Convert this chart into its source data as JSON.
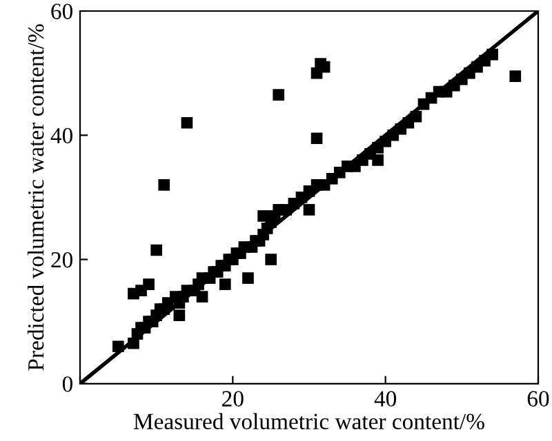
{
  "chart_data": {
    "type": "scatter",
    "xlabel": "Measured volumetric water content/%",
    "ylabel": "Predicted volumetric water content/%",
    "xlim": [
      0,
      60
    ],
    "ylim": [
      0,
      60
    ],
    "xticks": [
      {
        "value": 0,
        "label": null
      },
      20,
      40,
      60
    ],
    "yticks": [
      0,
      20,
      40,
      60
    ],
    "grid": false,
    "legend": false,
    "marker": "square",
    "series": [
      {
        "color": "#000000",
        "x": [
          5,
          7,
          7.5,
          8,
          8.5,
          9,
          9.5,
          10,
          10.5,
          11,
          11.5,
          12.5,
          13,
          13.5,
          14,
          15,
          15.5,
          16,
          17,
          17.5,
          18,
          18.5,
          19,
          19.5,
          20,
          20.5,
          21,
          21.5,
          22.5,
          23,
          23.5,
          24,
          24.5,
          25,
          25.5,
          26,
          27,
          28,
          29,
          30,
          31,
          32,
          33,
          34,
          35,
          36,
          37,
          38,
          39,
          40,
          41,
          42,
          43,
          44,
          45,
          46,
          47,
          48,
          49,
          50,
          51,
          52,
          53,
          54,
          7,
          8,
          9,
          10,
          11,
          14,
          26,
          31,
          31,
          31.5,
          32,
          57,
          13,
          16,
          19,
          22,
          25,
          24,
          30,
          39
        ],
        "values": [
          6,
          6.5,
          8,
          9,
          9,
          10,
          10,
          11,
          12,
          12,
          13,
          14,
          13,
          14,
          15,
          15,
          16,
          17,
          17,
          18,
          18,
          19,
          19,
          20,
          20,
          21,
          21,
          22,
          22,
          23,
          23,
          24,
          25,
          26,
          27,
          28,
          28,
          29,
          30,
          31,
          32,
          32,
          33,
          34,
          35,
          35,
          36,
          37,
          38,
          39,
          40,
          41,
          42,
          43,
          45,
          46,
          47,
          47,
          48,
          49,
          50,
          51,
          52,
          53,
          14.5,
          15,
          16,
          21.5,
          32,
          42,
          46.5,
          39.5,
          50,
          51.5,
          51,
          49.5,
          11,
          14,
          16,
          17,
          20,
          27,
          28,
          36
        ]
      },
      {
        "type": "line",
        "color": "#000000",
        "marker": "none",
        "x": [
          0,
          60
        ],
        "values": [
          0,
          60
        ]
      }
    ]
  }
}
